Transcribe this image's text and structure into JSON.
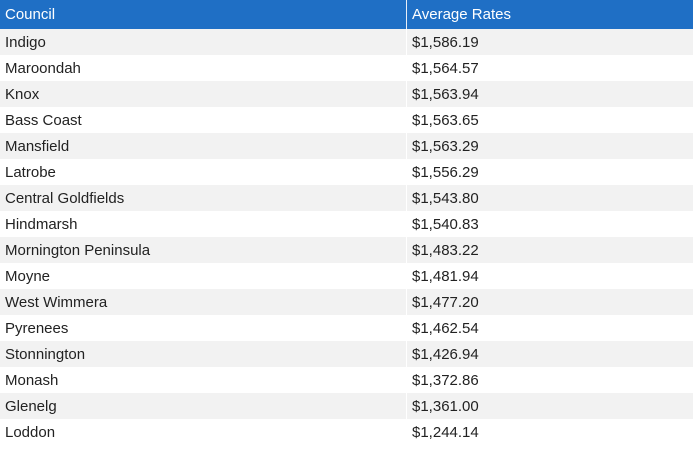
{
  "chart_data": {
    "type": "table",
    "columns": [
      "Council",
      "Average Rates"
    ],
    "rows": [
      [
        "Indigo",
        "$1,586.19"
      ],
      [
        "Maroondah",
        "$1,564.57"
      ],
      [
        "Knox",
        "$1,563.94"
      ],
      [
        "Bass Coast",
        "$1,563.65"
      ],
      [
        "Mansfield",
        "$1,563.29"
      ],
      [
        "Latrobe",
        "$1,556.29"
      ],
      [
        "Central Goldfields",
        "$1,543.80"
      ],
      [
        "Hindmarsh",
        "$1,540.83"
      ],
      [
        "Mornington Peninsula",
        "$1,483.22"
      ],
      [
        "Moyne",
        "$1,481.94"
      ],
      [
        "West Wimmera",
        "$1,477.20"
      ],
      [
        "Pyrenees",
        "$1,462.54"
      ],
      [
        "Stonnington",
        "$1,426.94"
      ],
      [
        "Monash",
        "$1,372.86"
      ],
      [
        "Glenelg",
        "$1,361.00"
      ],
      [
        "Loddon",
        "$1,244.14"
      ]
    ]
  },
  "colors": {
    "header_background": "#1f6fc5",
    "header_text": "#ffffff",
    "stripe": "#f2f2f2"
  }
}
